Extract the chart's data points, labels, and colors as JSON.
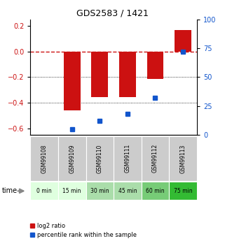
{
  "title": "GDS2583 / 1421",
  "samples": [
    "GSM99108",
    "GSM99109",
    "GSM99110",
    "GSM99111",
    "GSM99112",
    "GSM99113"
  ],
  "time_labels": [
    "0 min",
    "15 min",
    "30 min",
    "45 min",
    "60 min",
    "75 min"
  ],
  "log2_ratios": [
    0.0,
    -0.46,
    -0.355,
    -0.355,
    -0.215,
    0.165
  ],
  "percentile_ranks": [
    null,
    5.0,
    12.0,
    18.0,
    32.0,
    72.0
  ],
  "bar_color": "#cc1111",
  "dot_color": "#1155cc",
  "ylim_left": [
    -0.65,
    0.25
  ],
  "ylim_right": [
    0,
    100
  ],
  "yticks_left": [
    -0.6,
    -0.4,
    -0.2,
    0.0,
    0.2
  ],
  "yticks_right": [
    0,
    25,
    50,
    75,
    100
  ],
  "grid_color": "#000000",
  "dashed_line_color": "#cc1111",
  "time_bg_colors": [
    "#dfffdf",
    "#dfffdf",
    "#aaddaa",
    "#aaddaa",
    "#77cc77",
    "#33bb33"
  ],
  "sample_bg_color": "#cccccc",
  "bar_width": 0.6,
  "legend_red_label": "log2 ratio",
  "legend_blue_label": "percentile rank within the sample"
}
